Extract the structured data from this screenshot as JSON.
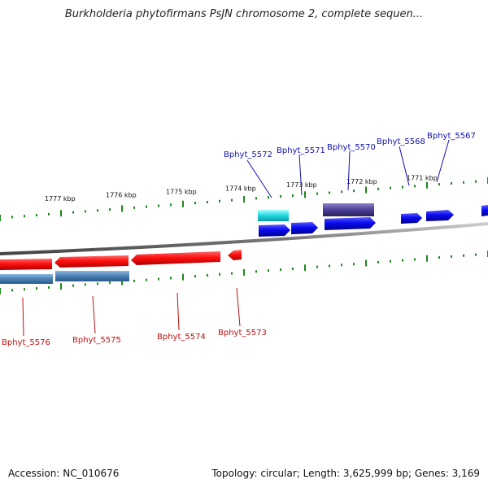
{
  "title": "Burkholderia phytofirmans PsJN chromosome 2, complete sequen...",
  "accession": "Accession: NC_010676",
  "summary": "Topology: circular; Length: 3,625,999 bp; Genes: 3,169",
  "ticks": [
    {
      "label": "1777 kbp"
    },
    {
      "label": "1776 kbp"
    },
    {
      "label": "1775 kbp"
    },
    {
      "label": "1774 kbp"
    },
    {
      "label": "1773 kbp"
    },
    {
      "label": "1772 kbp"
    },
    {
      "label": "1771 kbp"
    }
  ],
  "genes_top": [
    {
      "name": "Bphyt_5572"
    },
    {
      "name": "Bphyt_5571"
    },
    {
      "name": "Bphyt_5570"
    },
    {
      "name": "Bphyt_5568"
    },
    {
      "name": "Bphyt_5567"
    }
  ],
  "genes_bottom": [
    {
      "name": "Bphyt_5576"
    },
    {
      "name": "Bphyt_5575"
    },
    {
      "name": "Bphyt_5574"
    },
    {
      "name": "Bphyt_5573"
    }
  ],
  "colors": {
    "forward_cds": "#0a0af0",
    "reverse_cds": "#e8101a",
    "forward_gene_extra": "#20d8e0",
    "forward_gene_dark": "#4a3f96",
    "reverse_gene": "#4a7fb5",
    "label_top": "#1010b0",
    "label_bottom": "#c01010",
    "tick": "#1a8a1a",
    "backbone": "#888888"
  }
}
